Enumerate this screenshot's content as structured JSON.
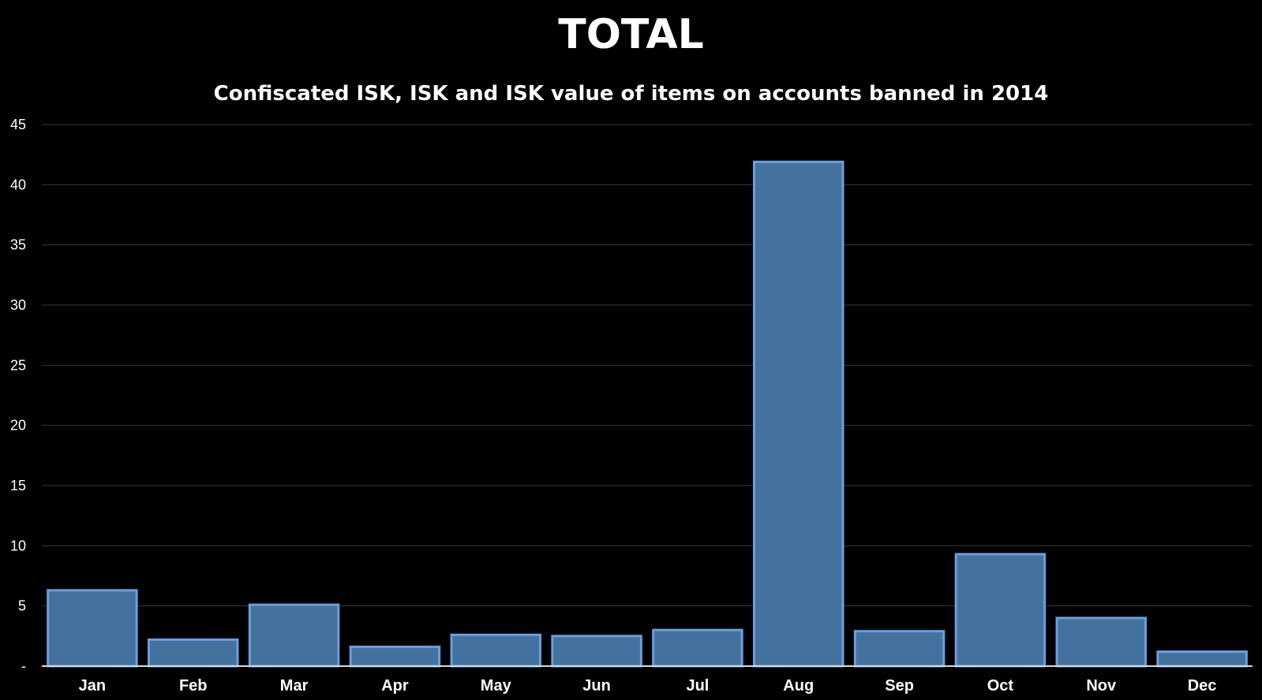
{
  "chart_data": {
    "type": "bar",
    "title": "TOTAL",
    "subtitle": "Confiscated ISK, ISK and ISK value of items on accounts banned in 2014",
    "xlabel": "",
    "ylabel": "",
    "categories": [
      "Jan",
      "Feb",
      "Mar",
      "Apr",
      "May",
      "Jun",
      "Jul",
      "Aug",
      "Sep",
      "Oct",
      "Nov",
      "Dec"
    ],
    "values": [
      6.3,
      2.2,
      5.1,
      1.6,
      2.6,
      2.5,
      3.0,
      41.9,
      2.9,
      9.3,
      4.0,
      1.2
    ],
    "ylim": [
      0,
      45
    ],
    "yticks": [
      0,
      5,
      10,
      15,
      20,
      25,
      30,
      35,
      40,
      45
    ],
    "ytick_labels": [
      "-",
      "5",
      "10",
      "15",
      "20",
      "25",
      "30",
      "35",
      "40",
      "45"
    ],
    "grid": true,
    "colors": {
      "background": "#000000",
      "bar_fill": "#44729f",
      "bar_stroke": "#6a9fe0",
      "grid": "#3a3a3a",
      "text": "#ffffff"
    }
  }
}
